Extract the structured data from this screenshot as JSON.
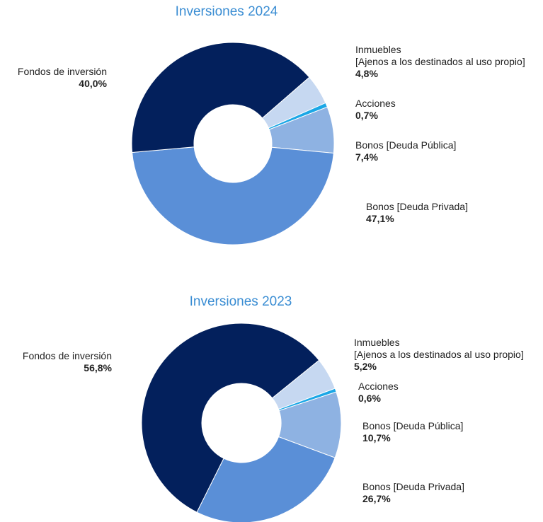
{
  "chart_data": [
    {
      "type": "donut",
      "title": "Inversiones 2024",
      "categories": [
        "Inmuebles\n[Ajenos a los destinados al uso propio]",
        "Acciones",
        "Bonos [Deuda Pública]",
        "Bonos [Deuda Privada]",
        "Fondos de inversión"
      ],
      "values": [
        4.8,
        0.7,
        7.4,
        47.1,
        40.0
      ],
      "value_labels": [
        "4,8%",
        "0,7%",
        "7,4%",
        "47,1%",
        "40,0%"
      ],
      "colors": [
        "#c6d8f1",
        "#1ba7e6",
        "#8eb2e2",
        "#5a8fd7",
        "#03205c"
      ]
    },
    {
      "type": "donut",
      "title": "Inversiones 2023",
      "categories": [
        "Inmuebles\n[Ajenos a los destinados al uso propio]",
        "Acciones",
        "Bonos [Deuda Pública]",
        "Bonos [Deuda Privada]",
        "Fondos de inversión"
      ],
      "values": [
        5.2,
        0.6,
        10.7,
        26.7,
        56.8
      ],
      "value_labels": [
        "5,2%",
        "0,6%",
        "10,7%",
        "26,7%",
        "56,8%"
      ],
      "colors": [
        "#c6d8f1",
        "#1ba7e6",
        "#8eb2e2",
        "#5a8fd7",
        "#03205c"
      ]
    }
  ]
}
